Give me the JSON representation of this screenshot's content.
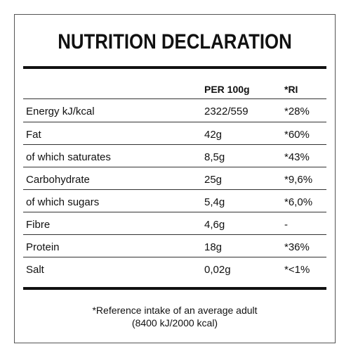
{
  "title": "NUTRITION DECLARATION",
  "columns": {
    "per100g": "PER 100g",
    "ri": "*RI"
  },
  "rows": [
    {
      "label": "Energy kJ/kcal",
      "value": "2322/559",
      "ri": "*28%"
    },
    {
      "label": "Fat",
      "value": "42g",
      "ri": "*60%"
    },
    {
      "label": "of which saturates",
      "value": "8,5g",
      "ri": "*43%"
    },
    {
      "label": "Carbohydrate",
      "value": "25g",
      "ri": "*9,6%"
    },
    {
      "label": "of which sugars",
      "value": "5,4g",
      "ri": "*6,0%"
    },
    {
      "label": "Fibre",
      "value": "4,6g",
      "ri": "-"
    },
    {
      "label": "Protein",
      "value": "18g",
      "ri": "*36%"
    },
    {
      "label": "Salt",
      "value": "0,02g",
      "ri": "*<1%"
    }
  ],
  "footnote": {
    "line1": "*Reference intake of an average adult",
    "line2": "(8400 kJ/2000 kcal)"
  }
}
